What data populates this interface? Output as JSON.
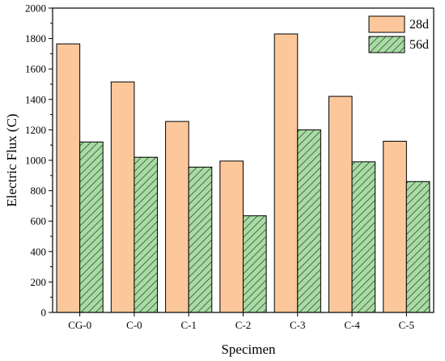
{
  "chart_data": {
    "type": "bar",
    "xlabel": "Specimen",
    "ylabel": "Electric Flux (C)",
    "ylim": [
      0,
      2000
    ],
    "yticks": [
      0,
      200,
      400,
      600,
      800,
      1000,
      1200,
      1400,
      1600,
      1800,
      2000
    ],
    "categories": [
      "CG-0",
      "C-0",
      "C-1",
      "C-2",
      "C-3",
      "C-4",
      "C-5"
    ],
    "series": [
      {
        "name": "28d",
        "color": "#fcc89b",
        "pattern": "solid",
        "values": [
          1765,
          1515,
          1255,
          995,
          1830,
          1420,
          1125
        ]
      },
      {
        "name": "56d",
        "color": "#a9dba4",
        "pattern": "diagonal-hatch",
        "values": [
          1120,
          1020,
          955,
          635,
          1200,
          990,
          860
        ]
      }
    ],
    "legend_position": "top-right",
    "grid": false
  }
}
